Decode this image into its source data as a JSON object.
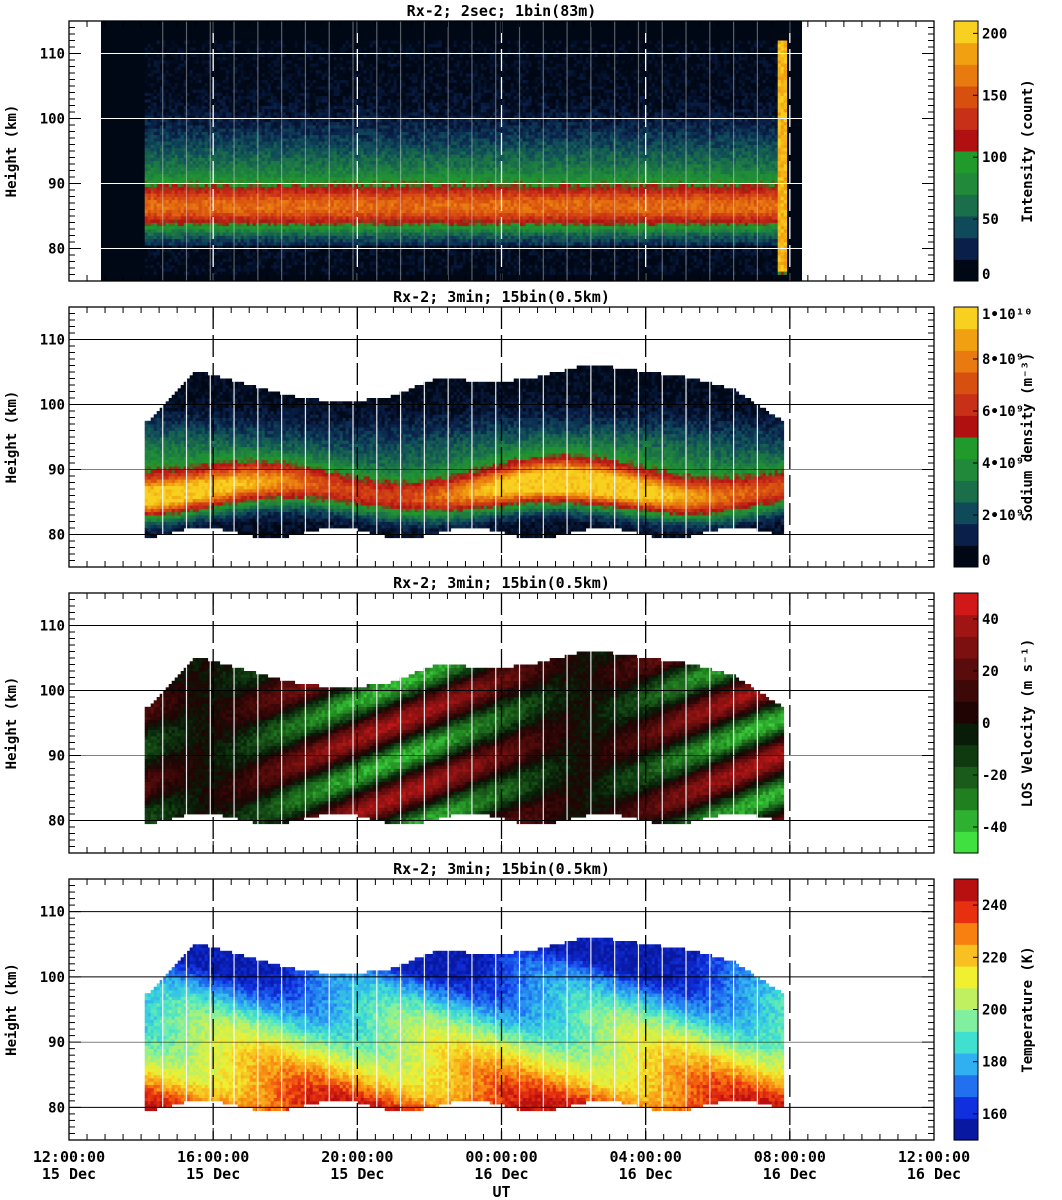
{
  "chart_data": [
    {
      "type": "heatmap",
      "title": "Rx-2;  2sec; 1bin(83m)",
      "ylabel": "Height (km)",
      "ylim": [
        75,
        115
      ],
      "yticks": [
        80,
        90,
        100,
        110
      ],
      "colorbar": {
        "label": "Intensity (count)",
        "ticks": [
          "0",
          "50",
          "100",
          "150",
          "200"
        ],
        "range": [
          0,
          210
        ],
        "colors": [
          "#000816",
          "#0a1f4a",
          "#0f4a5a",
          "#1a6e4a",
          "#208a3a",
          "#209a2a",
          "#b01010",
          "#c83018",
          "#d85010",
          "#e87a10",
          "#f0a010",
          "#f8d020"
        ]
      }
    },
    {
      "type": "heatmap",
      "title": "Rx-2; 3min; 15bin(0.5km)",
      "ylabel": "Height (km)",
      "ylim": [
        75,
        115
      ],
      "yticks": [
        80,
        90,
        100,
        110
      ],
      "colorbar": {
        "label": "Sodium density (m⁻³)",
        "ticks": [
          "0",
          "2•10⁹",
          "4•10⁹",
          "6•10⁹",
          "8•10⁹",
          "1•10¹⁰"
        ],
        "range": [
          0,
          10
        ],
        "colors": [
          "#000816",
          "#0a1f4a",
          "#0f4a5a",
          "#1a6e4a",
          "#208a3a",
          "#209a2a",
          "#b01010",
          "#c83018",
          "#d85010",
          "#e87a10",
          "#f0a010",
          "#f8d020"
        ]
      }
    },
    {
      "type": "heatmap",
      "title": "Rx-2; 3min; 15bin(0.5km)",
      "ylabel": "Height (km)",
      "ylim": [
        75,
        115
      ],
      "yticks": [
        80,
        90,
        100,
        110
      ],
      "colorbar": {
        "label": "LOS Velocity (m s⁻¹)",
        "ticks": [
          "-40",
          "-20",
          "0",
          "20",
          "40"
        ],
        "range": [
          -50,
          50
        ],
        "colors": [
          "#40e040",
          "#30b030",
          "#208020",
          "#1a5a1a",
          "#0f3a10",
          "#081c08",
          "#200404",
          "#3c0808",
          "#5a0c0c",
          "#7c1010",
          "#a01414",
          "#d01818"
        ]
      }
    },
    {
      "type": "heatmap",
      "title": "Rx-2; 3min; 15bin(0.5km)",
      "ylabel": "Height (km)",
      "ylim": [
        75,
        115
      ],
      "yticks": [
        80,
        90,
        100,
        110
      ],
      "colorbar": {
        "label": "Temperature (K)",
        "ticks": [
          "160",
          "180",
          "200",
          "220",
          "240"
        ],
        "range": [
          150,
          250
        ],
        "colors": [
          "#0818a0",
          "#1030e0",
          "#2070f0",
          "#30b0f0",
          "#40e0d0",
          "#80f0a0",
          "#c0f060",
          "#f0f030",
          "#f8c020",
          "#f88010",
          "#e83010",
          "#b81010"
        ]
      }
    }
  ],
  "x_axis": {
    "label": "UT",
    "xlim_hours": [
      12,
      36
    ],
    "ticks": [
      {
        "time": "12:00:00",
        "date": "15 Dec"
      },
      {
        "time": "16:00:00",
        "date": "15 Dec"
      },
      {
        "time": "20:00:00",
        "date": "15 Dec"
      },
      {
        "time": "00:00:00",
        "date": "16 Dec"
      },
      {
        "time": "04:00:00",
        "date": "16 Dec"
      },
      {
        "time": "08:00:00",
        "date": "16 Dec"
      },
      {
        "time": "12:00:00",
        "date": "16 Dec"
      }
    ]
  },
  "observation": {
    "start_hour": 14.1,
    "end_hour": 31.8,
    "layer_bottom_km": 80,
    "layer_top_km_profile": [
      97,
      105,
      103,
      101,
      100,
      101,
      104,
      103,
      104,
      106,
      105,
      104,
      102,
      97
    ]
  }
}
